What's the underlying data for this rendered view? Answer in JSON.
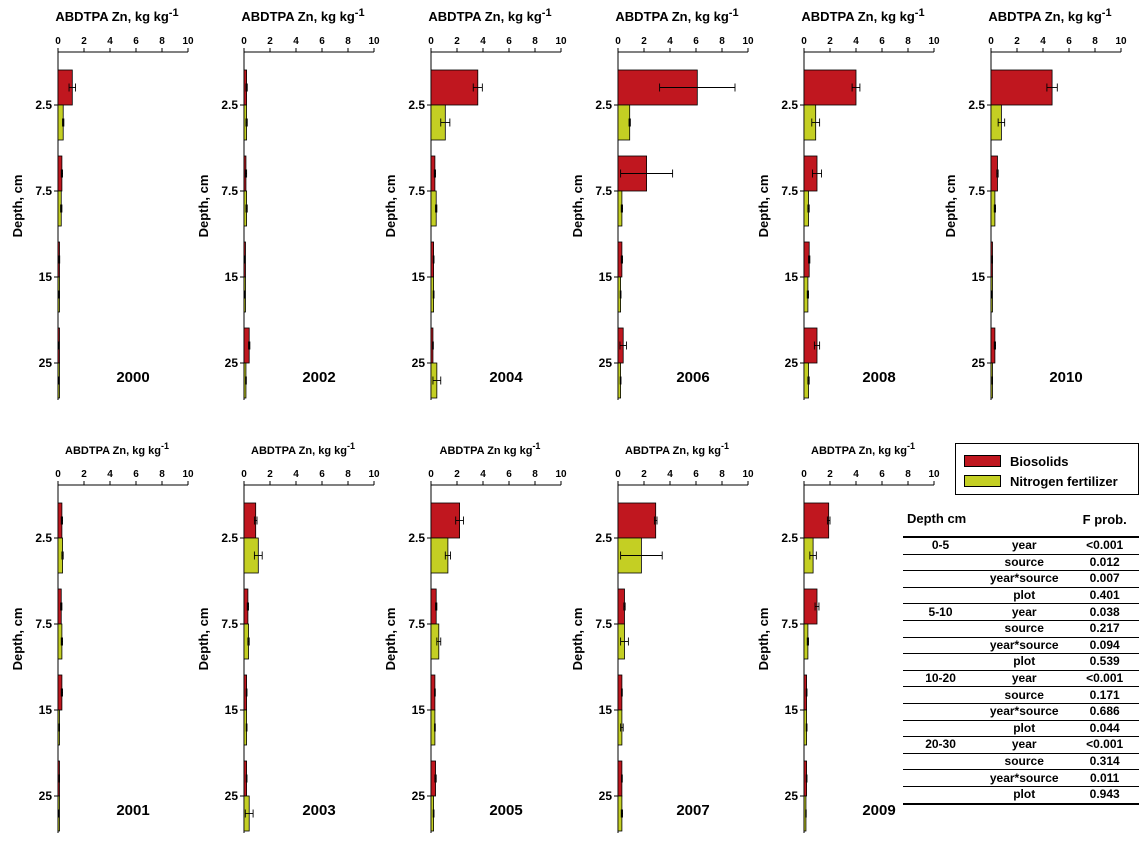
{
  "colors": {
    "biosolids": "#c0171f",
    "nitrogen": "#c4cf23"
  },
  "chart_data": [
    {
      "type": "bar",
      "year_label": "2000",
      "title": "ABDTPA Zn, kg kg",
      "title_sup": "-1",
      "ylabel": "Depth, cm",
      "xlim": [
        0,
        10
      ],
      "x_ticks": [
        "0",
        "2",
        "4",
        "6",
        "8",
        "10"
      ],
      "depth_ticks": [
        "2.5",
        "7.5",
        "15",
        "25"
      ],
      "series": [
        {
          "name": "Biosolids",
          "values": [
            1.1,
            0.3,
            0.1,
            0.05
          ],
          "errors": [
            0.25,
            0.05,
            0.03,
            0.02
          ]
        },
        {
          "name": "Nitrogen fertilizer",
          "values": [
            0.4,
            0.25,
            0.08,
            0.05
          ],
          "errors": [
            0.05,
            0.05,
            0.03,
            0.02
          ]
        }
      ]
    },
    {
      "type": "bar",
      "year_label": "2002",
      "title": "ABDTPA Zn, kg kg",
      "title_sup": "-1",
      "ylabel": "Depth, cm",
      "xlim": [
        0,
        10
      ],
      "x_ticks": [
        "0",
        "2",
        "4",
        "6",
        "8",
        "10"
      ],
      "depth_ticks": [
        "2.5",
        "7.5",
        "15",
        "25"
      ],
      "series": [
        {
          "name": "Biosolids",
          "values": [
            0.2,
            0.15,
            0.05,
            0.4
          ],
          "errors": [
            0.05,
            0.05,
            0.02,
            0.05
          ]
        },
        {
          "name": "Nitrogen fertilizer",
          "values": [
            0.2,
            0.2,
            0.05,
            0.15
          ],
          "errors": [
            0.05,
            0.05,
            0.02,
            0.03
          ]
        }
      ]
    },
    {
      "type": "bar",
      "year_label": "2004",
      "title": "ABDTPA Zn, kg kg",
      "title_sup": "-1",
      "ylabel": "Depth, cm",
      "xlim": [
        0,
        10
      ],
      "x_ticks": [
        "0",
        "2",
        "4",
        "6",
        "8",
        "10"
      ],
      "depth_ticks": [
        "2.5",
        "7.5",
        "15",
        "25"
      ],
      "series": [
        {
          "name": "Biosolids",
          "values": [
            3.6,
            0.3,
            0.2,
            0.15
          ],
          "errors": [
            0.35,
            0.05,
            0.03,
            0.03
          ]
        },
        {
          "name": "Nitrogen fertilizer",
          "values": [
            1.1,
            0.4,
            0.2,
            0.45
          ],
          "errors": [
            0.35,
            0.05,
            0.03,
            0.3
          ]
        }
      ]
    },
    {
      "type": "bar",
      "year_label": "2006",
      "title": "ABDTPA Zn, kg kg",
      "title_sup": "-1",
      "ylabel": "Depth, cm",
      "xlim": [
        0,
        10
      ],
      "x_ticks": [
        "0",
        "2",
        "4",
        "6",
        "8",
        "10"
      ],
      "depth_ticks": [
        "2.5",
        "7.5",
        "15",
        "25"
      ],
      "series": [
        {
          "name": "Biosolids",
          "values": [
            6.1,
            2.2,
            0.3,
            0.4
          ],
          "errors": [
            2.9,
            2.0,
            0.05,
            0.25
          ]
        },
        {
          "name": "Nitrogen fertilizer",
          "values": [
            0.9,
            0.3,
            0.2,
            0.2
          ],
          "errors": [
            0.05,
            0.05,
            0.03,
            0.03
          ]
        }
      ]
    },
    {
      "type": "bar",
      "year_label": "2008",
      "title": "ABDTPA Zn, kg kg",
      "title_sup": "-1",
      "ylabel": "Depth, cm",
      "xlim": [
        0,
        10
      ],
      "x_ticks": [
        "0",
        "2",
        "4",
        "6",
        "8",
        "10"
      ],
      "depth_ticks": [
        "2.5",
        "7.5",
        "15",
        "25"
      ],
      "series": [
        {
          "name": "Biosolids",
          "values": [
            4.0,
            1.0,
            0.4,
            1.0
          ],
          "errors": [
            0.3,
            0.35,
            0.05,
            0.2
          ]
        },
        {
          "name": "Nitrogen fertilizer",
          "values": [
            0.9,
            0.35,
            0.3,
            0.35
          ],
          "errors": [
            0.3,
            0.05,
            0.05,
            0.05
          ]
        }
      ]
    },
    {
      "type": "bar",
      "year_label": "2010",
      "title": "ABDTPA Zn, kg kg",
      "title_sup": "-1",
      "ylabel": "Depth, cm",
      "xlim": [
        0,
        10
      ],
      "x_ticks": [
        "0",
        "2",
        "4",
        "6",
        "8",
        "10"
      ],
      "depth_ticks": [
        "2.5",
        "7.5",
        "15",
        "25"
      ],
      "series": [
        {
          "name": "Biosolids",
          "values": [
            4.7,
            0.5,
            0.1,
            0.3
          ],
          "errors": [
            0.4,
            0.05,
            0.02,
            0.05
          ]
        },
        {
          "name": "Nitrogen fertilizer",
          "values": [
            0.8,
            0.3,
            0.05,
            0.1
          ],
          "errors": [
            0.25,
            0.05,
            0.02,
            0.02
          ]
        }
      ]
    },
    {
      "type": "bar",
      "year_label": "2001",
      "title": "ABDTPA Zn, kg kg",
      "title_sup": "-1",
      "ylabel": "Depth, cm",
      "xlim": [
        0,
        10
      ],
      "x_ticks": [
        "0",
        "2",
        "4",
        "6",
        "8",
        "10"
      ],
      "depth_ticks": [
        "2.5",
        "7.5",
        "15",
        "25"
      ],
      "series": [
        {
          "name": "Biosolids",
          "values": [
            0.3,
            0.25,
            0.3,
            0.1
          ],
          "errors": [
            0.05,
            0.05,
            0.05,
            0.02
          ]
        },
        {
          "name": "Nitrogen fertilizer",
          "values": [
            0.35,
            0.3,
            0.1,
            0.05
          ],
          "errors": [
            0.05,
            0.05,
            0.02,
            0.02
          ]
        }
      ]
    },
    {
      "type": "bar",
      "year_label": "2003",
      "title": "ABDTPA Zn, kg kg",
      "title_sup": "-1",
      "ylabel": "Depth, cm",
      "xlim": [
        0,
        10
      ],
      "x_ticks": [
        "0",
        "2",
        "4",
        "6",
        "8",
        "10"
      ],
      "depth_ticks": [
        "2.5",
        "7.5",
        "15",
        "25"
      ],
      "series": [
        {
          "name": "Biosolids",
          "values": [
            0.9,
            0.3,
            0.2,
            0.2
          ],
          "errors": [
            0.1,
            0.05,
            0.03,
            0.03
          ]
        },
        {
          "name": "Nitrogen fertilizer",
          "values": [
            1.1,
            0.35,
            0.2,
            0.4
          ],
          "errors": [
            0.3,
            0.05,
            0.03,
            0.3
          ]
        }
      ]
    },
    {
      "type": "bar",
      "year_label": "2005",
      "title": "ABDTPA Zn kg kg",
      "title_sup": "-1",
      "ylabel": "Depth, cm",
      "xlim": [
        0,
        10
      ],
      "x_ticks": [
        "0",
        "2",
        "4",
        "6",
        "8",
        "10"
      ],
      "depth_ticks": [
        "2.5",
        "7.5",
        "15",
        "25"
      ],
      "series": [
        {
          "name": "Biosolids",
          "values": [
            2.2,
            0.4,
            0.3,
            0.35
          ],
          "errors": [
            0.3,
            0.05,
            0.03,
            0.05
          ]
        },
        {
          "name": "Nitrogen fertilizer",
          "values": [
            1.3,
            0.6,
            0.3,
            0.2
          ],
          "errors": [
            0.2,
            0.15,
            0.03,
            0.03
          ]
        }
      ]
    },
    {
      "type": "bar",
      "year_label": "2007",
      "title": "ABDTPA Zn, kg kg",
      "title_sup": "-1",
      "ylabel": "Depth, cm",
      "xlim": [
        0,
        10
      ],
      "x_ticks": [
        "0",
        "2",
        "4",
        "6",
        "8",
        "10"
      ],
      "depth_ticks": [
        "2.5",
        "7.5",
        "15",
        "25"
      ],
      "series": [
        {
          "name": "Biosolids",
          "values": [
            2.9,
            0.5,
            0.3,
            0.3
          ],
          "errors": [
            0.1,
            0.05,
            0.03,
            0.03
          ]
        },
        {
          "name": "Nitrogen fertilizer",
          "values": [
            1.8,
            0.5,
            0.3,
            0.3
          ],
          "errors": [
            1.6,
            0.3,
            0.1,
            0.05
          ]
        }
      ]
    },
    {
      "type": "bar",
      "year_label": "2009",
      "title": "ABDTPA Zn, kg kg",
      "title_sup": "-1",
      "ylabel": "Depth, cm",
      "xlim": [
        0,
        10
      ],
      "x_ticks": [
        "0",
        "2",
        "4",
        "6",
        "8",
        "10"
      ],
      "depth_ticks": [
        "2.5",
        "7.5",
        "15",
        "25"
      ],
      "series": [
        {
          "name": "Biosolids",
          "values": [
            1.9,
            1.0,
            0.2,
            0.2
          ],
          "errors": [
            0.1,
            0.15,
            0.03,
            0.03
          ]
        },
        {
          "name": "Nitrogen fertilizer",
          "values": [
            0.7,
            0.3,
            0.2,
            0.15
          ],
          "errors": [
            0.25,
            0.05,
            0.03,
            0.02
          ]
        }
      ]
    }
  ],
  "legend": {
    "items": [
      {
        "label": "Biosolids"
      },
      {
        "label": "Nitrogen fertilizer"
      }
    ]
  },
  "table": {
    "headers": [
      "Depth cm",
      "",
      "F prob."
    ],
    "rows": [
      [
        "0-5",
        "year",
        "<0.001"
      ],
      [
        "",
        "source",
        "0.012"
      ],
      [
        "",
        "year*source",
        "0.007"
      ],
      [
        "",
        "plot",
        "0.401"
      ],
      [
        "5-10",
        "year",
        "0.038"
      ],
      [
        "",
        "source",
        "0.217"
      ],
      [
        "",
        "year*source",
        "0.094"
      ],
      [
        "",
        "plot",
        "0.539"
      ],
      [
        "10-20",
        "year",
        "<0.001"
      ],
      [
        "",
        "source",
        "0.171"
      ],
      [
        "",
        "year*source",
        "0.686"
      ],
      [
        "",
        "plot",
        "0.044"
      ],
      [
        "20-30",
        "year",
        "<0.001"
      ],
      [
        "",
        "source",
        "0.314"
      ],
      [
        "",
        "year*source",
        "0.011"
      ],
      [
        "",
        "plot",
        "0.943"
      ]
    ]
  }
}
